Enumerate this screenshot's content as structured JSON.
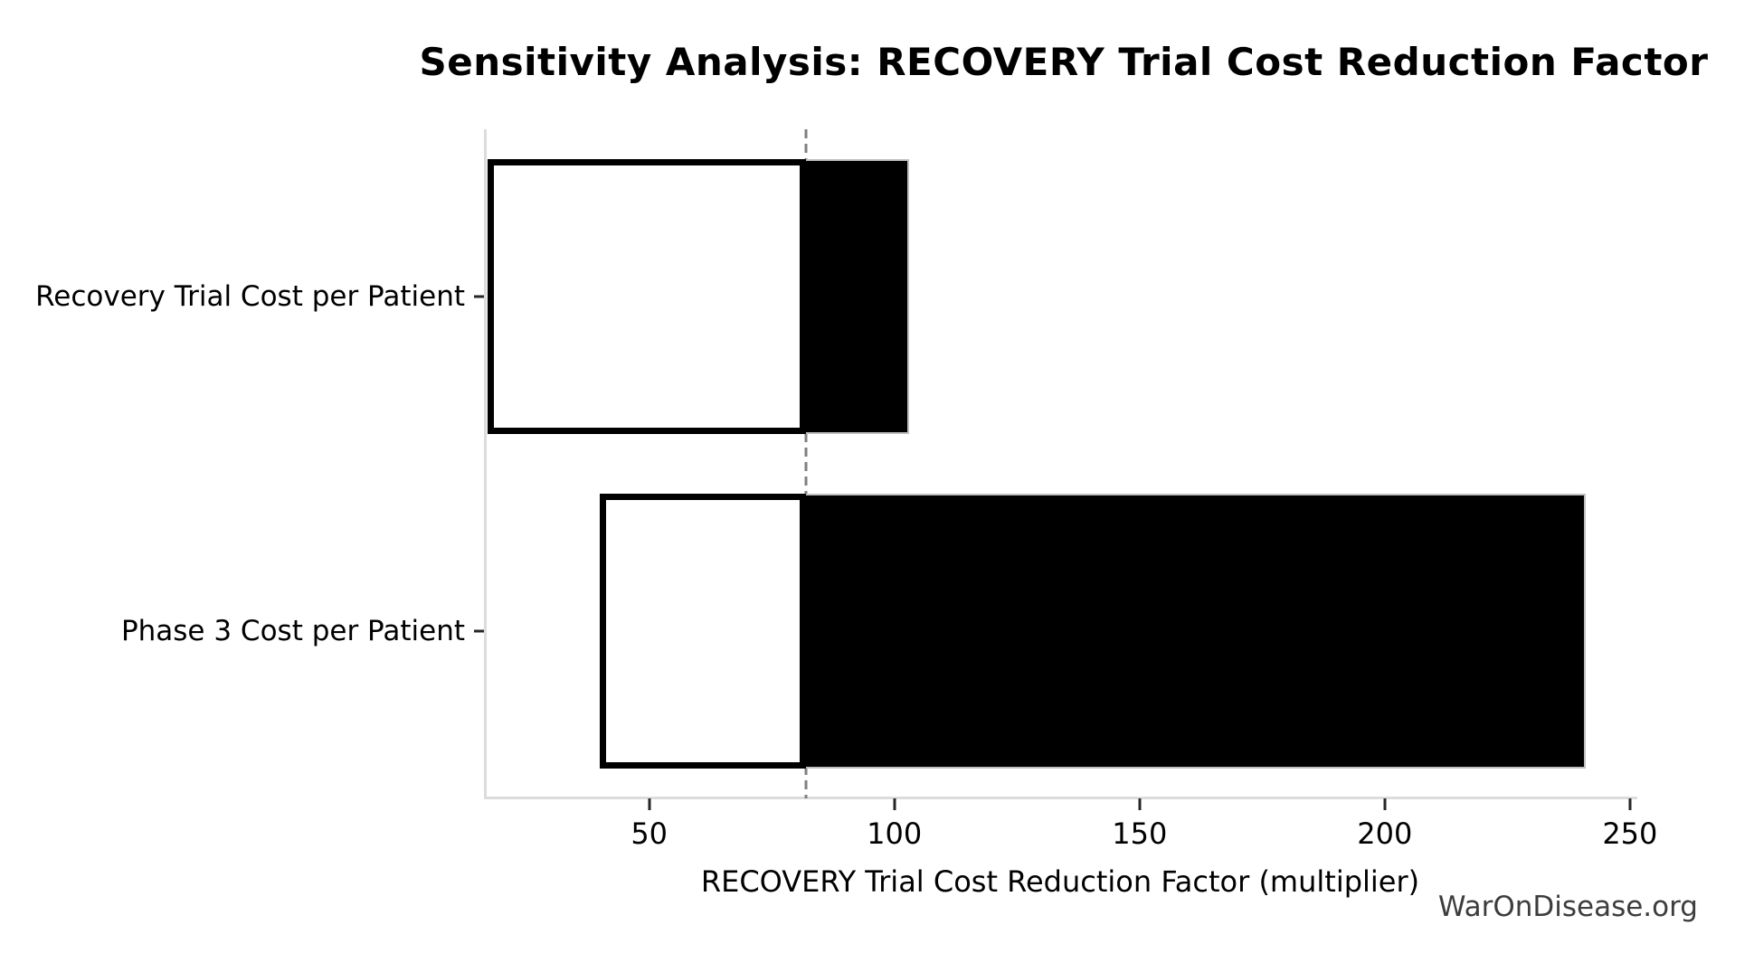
{
  "chart_data": {
    "type": "bar",
    "variant": "tornado-horizontal",
    "title": "Sensitivity Analysis: RECOVERY Trial Cost Reduction Factor",
    "xlabel": "RECOVERY Trial Cost Reduction Factor (multiplier)",
    "ylabel": "",
    "watermark": "WarOnDisease.org",
    "categories": [
      "Recovery Trial Cost per Patient",
      "Phase 3 Cost per Patient"
    ],
    "bars": [
      {
        "category": "Recovery Trial Cost per Patient",
        "low": 17,
        "high": 103
      },
      {
        "category": "Phase 3 Cost per Patient",
        "low": 40,
        "high": 241
      }
    ],
    "baseline": 82,
    "xlim": [
      16.3,
      251.5
    ],
    "xticks": [
      50,
      100,
      150,
      200,
      250
    ],
    "grid": false,
    "legend": false,
    "colors": {
      "background": "#ffffff",
      "low_segment_fill": "#ffffff",
      "high_segment_fill": "#000000",
      "bar_edge": "#000000",
      "high_segment_edge": "#bfbfbf",
      "baseline_dash": "#808080",
      "spine": "#dcdcdc",
      "tick_mark": "#262626",
      "text": "#000000",
      "watermark_text": "#3d3d3d"
    }
  }
}
